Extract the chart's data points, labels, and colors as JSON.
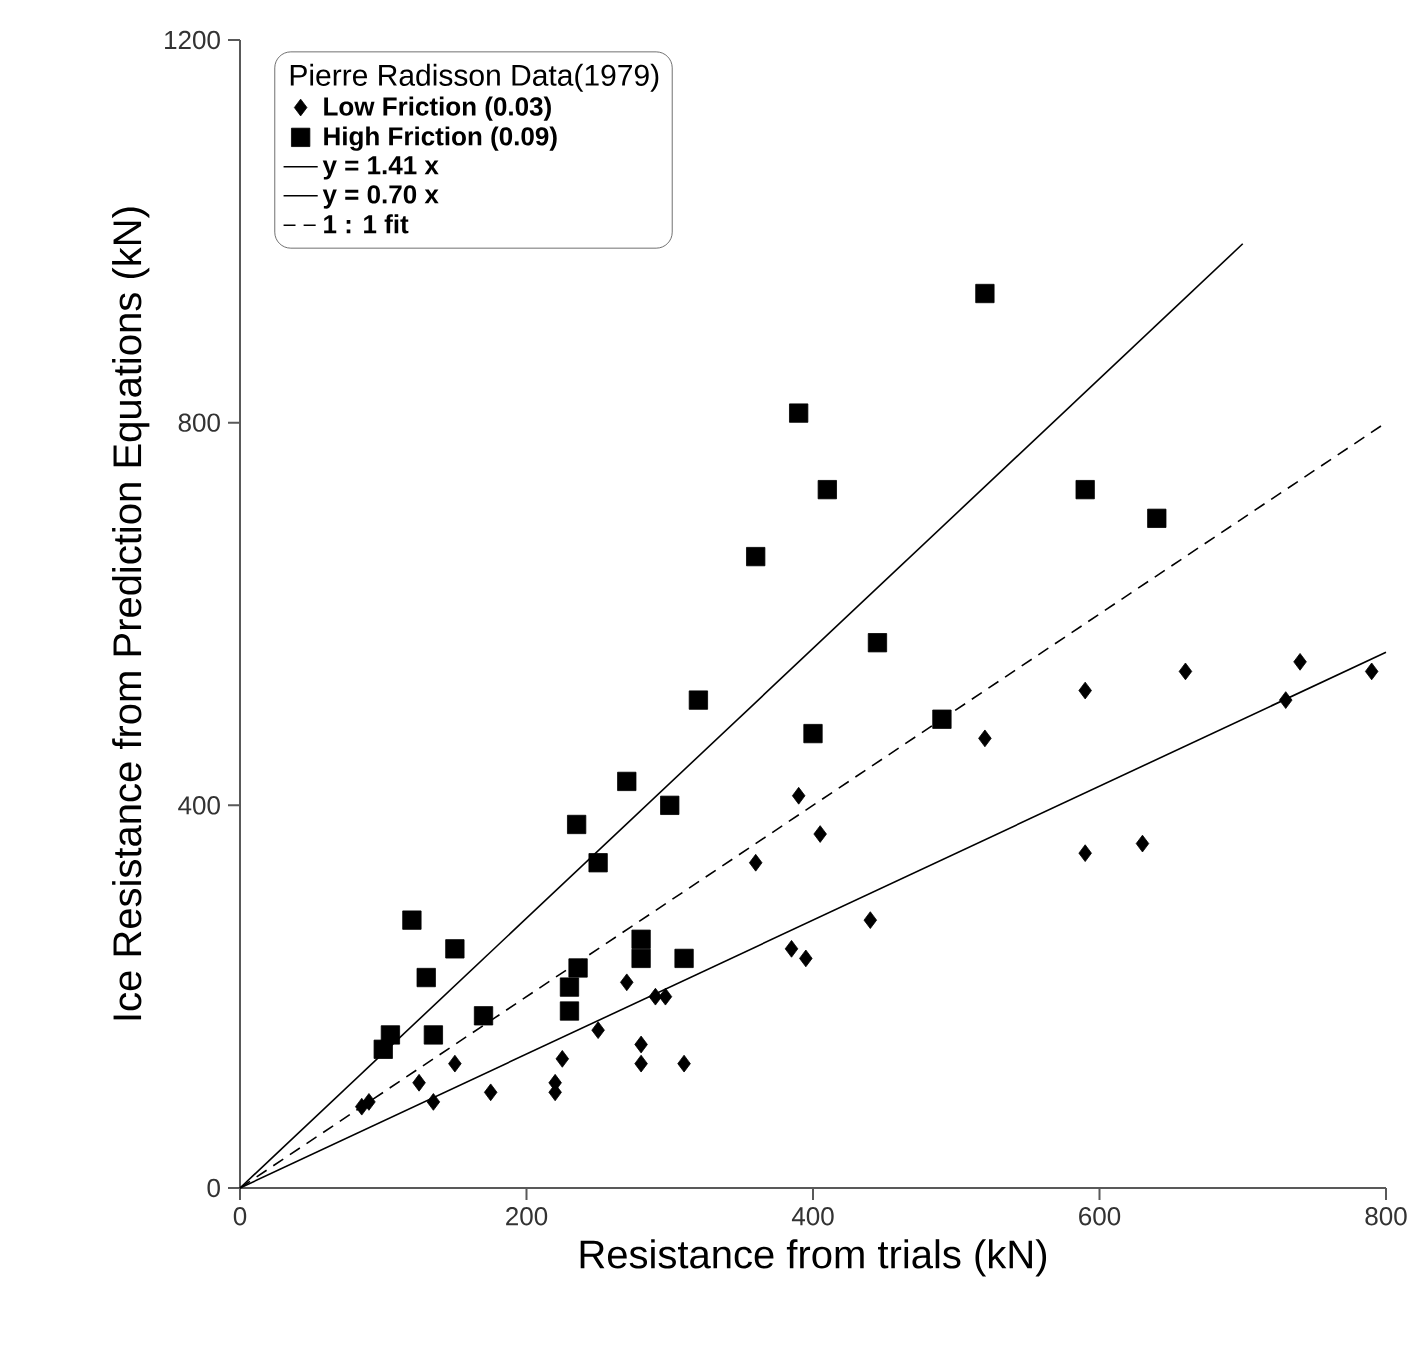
{
  "chart_data": {
    "type": "scatter",
    "xlabel": "Resistance from trials (kN)",
    "ylabel": "Ice Resistance from Prediction Equations (kN)",
    "legend_title": "Pierre Radisson Data(1979)",
    "legend": "top left",
    "grid": false,
    "xlim": [
      0,
      800
    ],
    "xticks": [
      0,
      200,
      400,
      600,
      800
    ],
    "ylim": [
      0,
      1200
    ],
    "yticks": [
      0,
      400,
      800,
      1200
    ],
    "series": [
      {
        "name": "Low Friction (0.03)",
        "marker": "diamond",
        "color": "#000000",
        "x": [
          85,
          90,
          125,
          135,
          150,
          175,
          220,
          220,
          225,
          250,
          270,
          280,
          280,
          290,
          297,
          310,
          360,
          385,
          390,
          395,
          405,
          440,
          520,
          590,
          590,
          630,
          660,
          730,
          740,
          790
        ],
        "values": [
          85,
          90,
          110,
          90,
          130,
          100,
          110,
          100,
          135,
          165,
          215,
          150,
          130,
          200,
          200,
          130,
          340,
          250,
          410,
          240,
          370,
          280,
          470,
          520,
          350,
          360,
          540,
          510,
          550,
          540
        ]
      },
      {
        "name": "High Friction (0.09)",
        "marker": "square",
        "color": "#000000",
        "x": [
          100,
          105,
          120,
          130,
          135,
          150,
          170,
          230,
          230,
          235,
          236,
          250,
          270,
          280,
          280,
          300,
          310,
          320,
          360,
          390,
          400,
          410,
          445,
          490,
          520,
          590,
          640
        ],
        "values": [
          145,
          160,
          280,
          220,
          160,
          250,
          180,
          210,
          185,
          380,
          230,
          340,
          425,
          260,
          240,
          400,
          240,
          510,
          660,
          810,
          475,
          730,
          570,
          490,
          935,
          730,
          700
        ]
      },
      {
        "name": "y = 1.41 x",
        "type": "line",
        "marker": "none",
        "line_style": "solid",
        "color": "#000000",
        "x": [
          0,
          700
        ],
        "values": [
          0,
          987
        ]
      },
      {
        "name": "y = 0.70 x",
        "type": "line",
        "marker": "none",
        "line_style": "solid",
        "color": "#000000",
        "x": [
          0,
          800
        ],
        "values": [
          0,
          560
        ]
      },
      {
        "name": "1 : 1 fit",
        "type": "line",
        "marker": "none",
        "line_style": "dashed",
        "color": "#000000",
        "x": [
          0,
          800
        ],
        "values": [
          0,
          800
        ]
      }
    ]
  }
}
